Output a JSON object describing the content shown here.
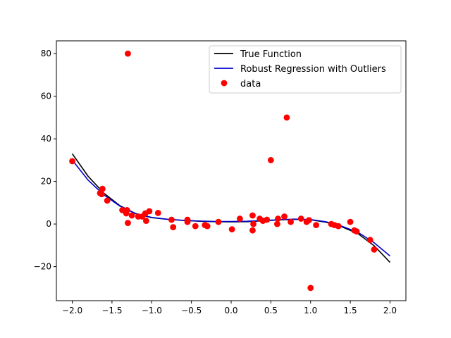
{
  "chart_data": {
    "type": "scatter",
    "xlim": [
      -2.2,
      2.2
    ],
    "ylim": [
      -36,
      86
    ],
    "x_ticks": [
      -2.0,
      -1.5,
      -1.0,
      -0.5,
      0.0,
      0.5,
      1.0,
      1.5,
      2.0
    ],
    "x_tick_labels": [
      "−2.0",
      "−1.5",
      "−1.0",
      "−0.5",
      "0.0",
      "0.5",
      "1.0",
      "1.5",
      "2.0"
    ],
    "y_ticks": [
      -20,
      0,
      20,
      40,
      60,
      80
    ],
    "y_tick_labels": [
      "−20",
      "0",
      "20",
      "40",
      "60",
      "80"
    ],
    "grid": false,
    "legend_position": "upper-right",
    "series": [
      {
        "name": "True Function",
        "kind": "line",
        "color": "#000000",
        "x": [
          -2.0,
          -1.8,
          -1.6,
          -1.4,
          -1.2,
          -1.0,
          -0.8,
          -0.6,
          -0.4,
          -0.2,
          0.0,
          0.2,
          0.4,
          0.6,
          0.8,
          1.0,
          1.2,
          1.4,
          1.6,
          1.8,
          2.0
        ],
        "y": [
          33.0,
          22.4,
          14.4,
          8.6,
          4.8,
          3.0,
          2.2,
          1.7,
          1.3,
          1.1,
          1.0,
          1.1,
          1.5,
          1.9,
          2.2,
          2.0,
          0.8,
          -1.4,
          -4.6,
          -10.2,
          -18.0
        ]
      },
      {
        "name": "Robust Regression with Outliers",
        "kind": "line",
        "color": "#0000cc",
        "x": [
          -2.0,
          -1.8,
          -1.6,
          -1.4,
          -1.2,
          -1.0,
          -0.8,
          -0.6,
          -0.4,
          -0.2,
          0.0,
          0.2,
          0.4,
          0.6,
          0.8,
          1.0,
          1.2,
          1.4,
          1.6,
          1.8,
          2.0
        ],
        "y": [
          30.0,
          20.6,
          13.6,
          8.4,
          4.9,
          3.1,
          2.2,
          1.7,
          1.4,
          1.2,
          1.2,
          1.3,
          1.6,
          2.0,
          2.3,
          2.1,
          1.0,
          -1.1,
          -4.0,
          -8.8,
          -15.0
        ]
      },
      {
        "name": "data",
        "kind": "scatter",
        "color": "#ff0000",
        "points": [
          [
            -2.0,
            29.5
          ],
          [
            -1.65,
            14.5
          ],
          [
            -1.63,
            14.0
          ],
          [
            -1.62,
            16.5
          ],
          [
            -1.56,
            11.0
          ],
          [
            -1.37,
            6.5
          ],
          [
            -1.32,
            5.0
          ],
          [
            -1.31,
            6.5
          ],
          [
            -1.3,
            80.0
          ],
          [
            -1.3,
            0.5
          ],
          [
            -1.25,
            4.0
          ],
          [
            -1.17,
            3.5
          ],
          [
            -1.12,
            3.5
          ],
          [
            -1.08,
            5.0
          ],
          [
            -1.07,
            1.5
          ],
          [
            -1.03,
            6.0
          ],
          [
            -0.92,
            5.2
          ],
          [
            -0.75,
            2.0
          ],
          [
            -0.73,
            -1.5
          ],
          [
            -0.55,
            2.0
          ],
          [
            -0.55,
            1.0
          ],
          [
            -0.45,
            -1.0
          ],
          [
            -0.33,
            -0.5
          ],
          [
            -0.3,
            -1.0
          ],
          [
            -0.16,
            1.0
          ],
          [
            0.01,
            -2.5
          ],
          [
            0.11,
            2.5
          ],
          [
            0.27,
            -3.0
          ],
          [
            0.27,
            4.0
          ],
          [
            0.28,
            0.0
          ],
          [
            0.36,
            2.5
          ],
          [
            0.4,
            1.5
          ],
          [
            0.45,
            2.0
          ],
          [
            0.5,
            30.0
          ],
          [
            0.58,
            0.0
          ],
          [
            0.59,
            2.5
          ],
          [
            0.67,
            3.5
          ],
          [
            0.7,
            50.0
          ],
          [
            0.75,
            1.0
          ],
          [
            0.88,
            2.5
          ],
          [
            0.95,
            1.0
          ],
          [
            0.98,
            1.8
          ],
          [
            1.0,
            -30.0
          ],
          [
            1.07,
            -0.5
          ],
          [
            1.26,
            0.0
          ],
          [
            1.3,
            -0.5
          ],
          [
            1.35,
            -1.0
          ],
          [
            1.5,
            1.0
          ],
          [
            1.55,
            -3.0
          ],
          [
            1.58,
            -3.5
          ],
          [
            1.75,
            -7.5
          ],
          [
            1.8,
            -12.0
          ]
        ]
      }
    ]
  }
}
